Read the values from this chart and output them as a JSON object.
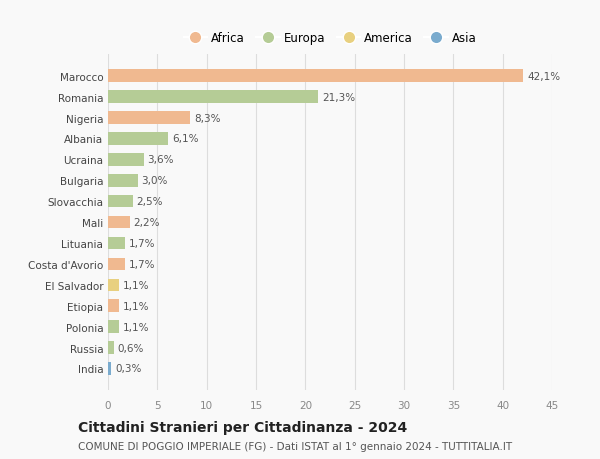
{
  "countries": [
    "Marocco",
    "Romania",
    "Nigeria",
    "Albania",
    "Ucraina",
    "Bulgaria",
    "Slovacchia",
    "Mali",
    "Lituania",
    "Costa d'Avorio",
    "El Salvador",
    "Etiopia",
    "Polonia",
    "Russia",
    "India"
  ],
  "values": [
    42.1,
    21.3,
    8.3,
    6.1,
    3.6,
    3.0,
    2.5,
    2.2,
    1.7,
    1.7,
    1.1,
    1.1,
    1.1,
    0.6,
    0.3
  ],
  "labels": [
    "42,1%",
    "21,3%",
    "8,3%",
    "6,1%",
    "3,6%",
    "3,0%",
    "2,5%",
    "2,2%",
    "1,7%",
    "1,7%",
    "1,1%",
    "1,1%",
    "1,1%",
    "0,6%",
    "0,3%"
  ],
  "colors": [
    "#f0b990",
    "#b5cc96",
    "#f0b990",
    "#b5cc96",
    "#b5cc96",
    "#b5cc96",
    "#b5cc96",
    "#f0b990",
    "#b5cc96",
    "#f0b990",
    "#e8d080",
    "#f0b990",
    "#b5cc96",
    "#b5cc96",
    "#7aabce"
  ],
  "legend_labels": [
    "Africa",
    "Europa",
    "America",
    "Asia"
  ],
  "legend_colors": [
    "#f0b990",
    "#b5cc96",
    "#e8d080",
    "#7aabce"
  ],
  "title": "Cittadini Stranieri per Cittadinanza - 2024",
  "subtitle": "COMUNE DI POGGIO IMPERIALE (FG) - Dati ISTAT al 1° gennaio 2024 - TUTTITALIA.IT",
  "xlim": [
    0,
    45
  ],
  "xticks": [
    0,
    5,
    10,
    15,
    20,
    25,
    30,
    35,
    40,
    45
  ],
  "background_color": "#f9f9f9",
  "grid_color": "#dddddd",
  "bar_height": 0.6,
  "label_fontsize": 7.5,
  "title_fontsize": 10,
  "subtitle_fontsize": 7.5,
  "tick_fontsize": 7.5,
  "ytick_fontsize": 7.5
}
